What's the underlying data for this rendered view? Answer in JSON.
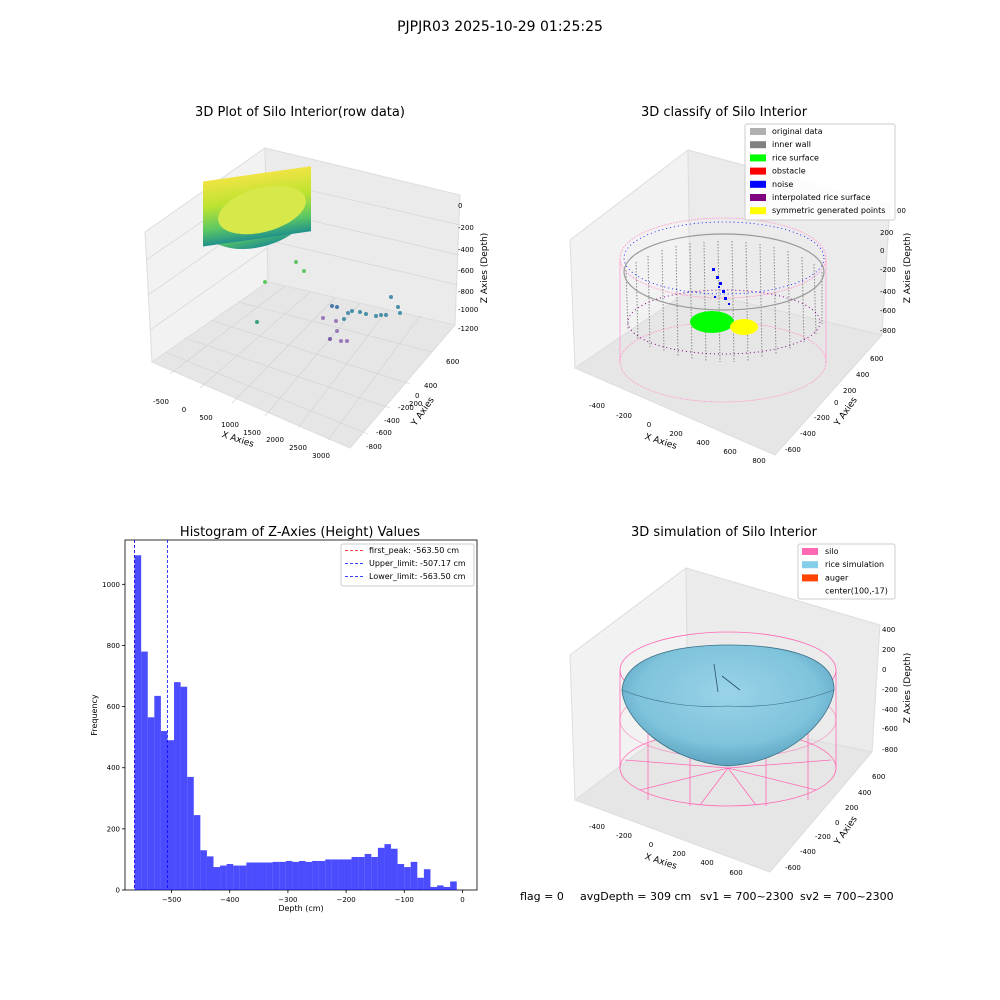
{
  "figure": {
    "suptitle": "PJPJR03 2025-10-29 01:25:25",
    "status_line": {
      "flag": "flag = 0",
      "avg_depth": "avgDepth = 309 cm",
      "sv1": "sv1 = 700~2300",
      "sv2": "sv2 = 700~2300"
    }
  },
  "panels": {
    "raw": {
      "title": "3D Plot of Silo Interior(row data)",
      "xlabel": "X Axies",
      "ylabel": "Y Axies",
      "zlabel": "Z Axies (Depth)",
      "xticks": [
        "-500",
        "0",
        "500",
        "1000",
        "1500",
        "2000",
        "2500",
        "3000"
      ],
      "yticks": [
        "600",
        "400",
        "200",
        "0",
        "-200",
        "-400",
        "-600",
        "-800"
      ],
      "zticks": [
        "0",
        "-200",
        "-400",
        "-600",
        "-800",
        "-1000",
        "-1200"
      ]
    },
    "classify": {
      "title": "3D classify of Silo Interior",
      "xlabel": "X Axies",
      "ylabel": "Y Axies",
      "zlabel": "Z Axies (Depth)",
      "xticks": [
        "-400",
        "-200",
        "0",
        "200",
        "400",
        "600",
        "800"
      ],
      "yticks": [
        "600",
        "400",
        "200",
        "0",
        "-200",
        "-400",
        "-600"
      ],
      "zticks": [
        "400",
        "200",
        "0",
        "-200",
        "-400",
        "-600",
        "-800"
      ],
      "legend": [
        {
          "label": "original data",
          "color": "#b0b0b0"
        },
        {
          "label": "inner wall",
          "color": "#808080"
        },
        {
          "label": "rice surface",
          "color": "#00ff00"
        },
        {
          "label": "obstacle",
          "color": "#ff0000"
        },
        {
          "label": "noise",
          "color": "#0000ff"
        },
        {
          "label": "interpolated rice surface",
          "color": "#800080"
        },
        {
          "label": "symmetric generated points",
          "color": "#ffff00"
        }
      ],
      "legend_clipped_tick": "00"
    },
    "simulation": {
      "title": "3D simulation of Silo Interior",
      "xlabel": "X Axies",
      "ylabel": "Y Axies",
      "zlabel": "Z Axies (Depth)",
      "xticks": [
        "-400",
        "-200",
        "0",
        "200",
        "400",
        "600"
      ],
      "yticks": [
        "600",
        "400",
        "200",
        "0",
        "-200",
        "-400",
        "-600"
      ],
      "zticks": [
        "400",
        "200",
        "0",
        "-200",
        "-400",
        "-600",
        "-800"
      ],
      "legend": [
        {
          "label": "silo",
          "color": "#ff69b4"
        },
        {
          "label": "rice simulation",
          "color": "#87ceeb"
        },
        {
          "label": "auger",
          "color": "#ff4500"
        },
        {
          "label": "center(100,-17)",
          "color": "none"
        }
      ]
    }
  },
  "chart_data": [
    {
      "type": "bar",
      "title": "Histogram of Z-Axies (Height) Values",
      "xlabel": "Depth (cm)",
      "ylabel": "Frequency",
      "xlim": [
        -580,
        25
      ],
      "ylim": [
        0,
        1145
      ],
      "xticks": [
        -500,
        -400,
        -300,
        -200,
        -100,
        0
      ],
      "xtick_labels": [
        "−500",
        "−400",
        "−300",
        "−200",
        "−100",
        "0"
      ],
      "yticks": [
        0,
        200,
        400,
        600,
        800,
        1000
      ],
      "bar_color": "#0000ff",
      "bin_start": -563.5,
      "bin_width": 11.3,
      "values": [
        1095,
        780,
        565,
        635,
        520,
        490,
        680,
        665,
        370,
        245,
        130,
        110,
        75,
        80,
        85,
        80,
        80,
        90,
        90,
        90,
        90,
        92,
        92,
        95,
        92,
        95,
        92,
        95,
        95,
        100,
        100,
        100,
        100,
        108,
        108,
        118,
        108,
        138,
        150,
        135,
        85,
        75,
        92,
        40,
        68,
        10,
        15,
        10,
        28
      ],
      "vlines": [
        {
          "x": -563.5,
          "color": "#ff0000"
        },
        {
          "x": -507.17,
          "color": "#0000ff"
        },
        {
          "x": -563.5,
          "color": "#0000ff"
        }
      ],
      "legend": [
        {
          "label": "first_peak: -563.50 cm",
          "color": "#ff0000"
        },
        {
          "label": "Upper_limit: -507.17 cm",
          "color": "#0000ff"
        },
        {
          "label": "Lower_limit: -563.50 cm",
          "color": "#0000ff"
        }
      ]
    }
  ]
}
